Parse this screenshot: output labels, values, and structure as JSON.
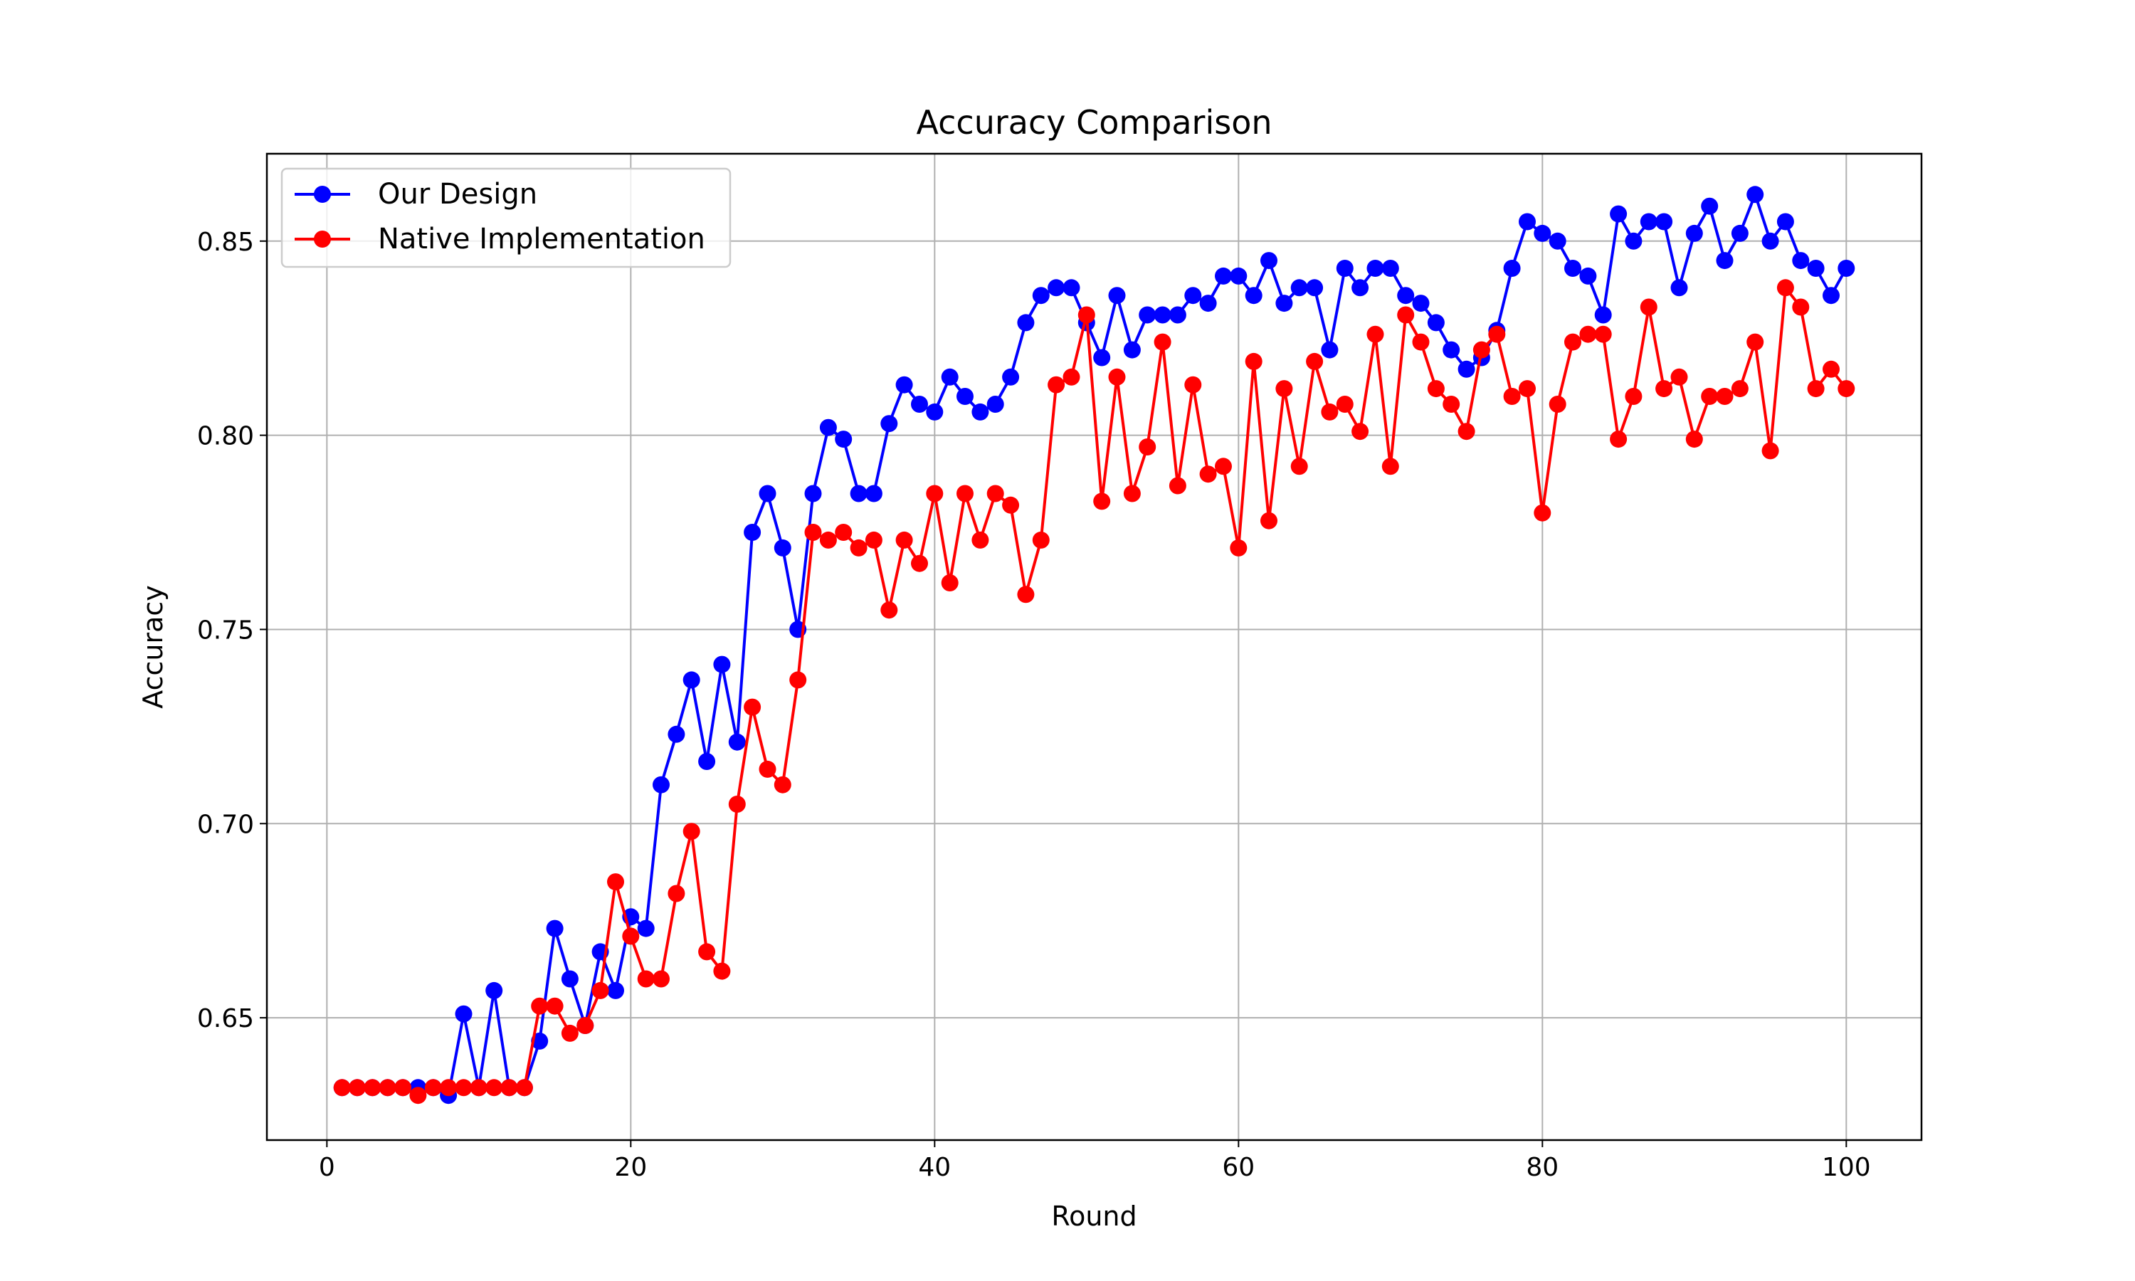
{
  "chart_data": {
    "type": "line",
    "title": "Accuracy Comparison",
    "xlabel": "Round",
    "ylabel": "Accuracy",
    "xlim": [
      -3.95,
      104.95
    ],
    "ylim": [
      0.6185,
      0.8725
    ],
    "xticks": [
      0,
      20,
      40,
      60,
      80,
      100
    ],
    "yticks": [
      0.65,
      0.7,
      0.75,
      0.8,
      0.85
    ],
    "xtick_labels": [
      "0",
      "20",
      "40",
      "60",
      "80",
      "100"
    ],
    "ytick_labels": [
      "0.65",
      "0.70",
      "0.75",
      "0.80",
      "0.85"
    ],
    "grid": true,
    "legend_position": "top-left",
    "x": [
      1,
      2,
      3,
      4,
      5,
      6,
      7,
      8,
      9,
      10,
      11,
      12,
      13,
      14,
      15,
      16,
      17,
      18,
      19,
      20,
      21,
      22,
      23,
      24,
      25,
      26,
      27,
      28,
      29,
      30,
      31,
      32,
      33,
      34,
      35,
      36,
      37,
      38,
      39,
      40,
      41,
      42,
      43,
      44,
      45,
      46,
      47,
      48,
      49,
      50,
      51,
      52,
      53,
      54,
      55,
      56,
      57,
      58,
      59,
      60,
      61,
      62,
      63,
      64,
      65,
      66,
      67,
      68,
      69,
      70,
      71,
      72,
      73,
      74,
      75,
      76,
      77,
      78,
      79,
      80,
      81,
      82,
      83,
      84,
      85,
      86,
      87,
      88,
      89,
      90,
      91,
      92,
      93,
      94,
      95,
      96,
      97,
      98,
      99,
      100
    ],
    "series": [
      {
        "name": "Our Design",
        "color": "#0000ff",
        "values": [
          0.632,
          0.632,
          0.632,
          0.632,
          0.632,
          0.632,
          0.632,
          0.63,
          0.651,
          0.632,
          0.657,
          0.632,
          0.632,
          0.644,
          0.673,
          0.66,
          0.648,
          0.667,
          0.657,
          0.676,
          0.673,
          0.71,
          0.723,
          0.737,
          0.716,
          0.741,
          0.721,
          0.775,
          0.785,
          0.771,
          0.75,
          0.785,
          0.802,
          0.799,
          0.785,
          0.785,
          0.803,
          0.813,
          0.808,
          0.806,
          0.815,
          0.81,
          0.806,
          0.808,
          0.815,
          0.829,
          0.836,
          0.838,
          0.838,
          0.829,
          0.82,
          0.836,
          0.822,
          0.831,
          0.831,
          0.831,
          0.836,
          0.834,
          0.841,
          0.841,
          0.836,
          0.845,
          0.834,
          0.838,
          0.838,
          0.822,
          0.843,
          0.838,
          0.843,
          0.843,
          0.836,
          0.834,
          0.829,
          0.822,
          0.817,
          0.82,
          0.827,
          0.843,
          0.855,
          0.852,
          0.85,
          0.843,
          0.841,
          0.831,
          0.857,
          0.85,
          0.855,
          0.855,
          0.838,
          0.852,
          0.859,
          0.845,
          0.852,
          0.862,
          0.85,
          0.855,
          0.845,
          0.843,
          0.836,
          0.843
        ]
      },
      {
        "name": "Native Implementation",
        "color": "#ff0000",
        "values": [
          0.632,
          0.632,
          0.632,
          0.632,
          0.632,
          0.63,
          0.632,
          0.632,
          0.632,
          0.632,
          0.632,
          0.632,
          0.632,
          0.653,
          0.653,
          0.646,
          0.648,
          0.657,
          0.685,
          0.671,
          0.66,
          0.66,
          0.682,
          0.698,
          0.667,
          0.662,
          0.705,
          0.73,
          0.714,
          0.71,
          0.737,
          0.775,
          0.773,
          0.775,
          0.771,
          0.773,
          0.755,
          0.773,
          0.767,
          0.785,
          0.762,
          0.785,
          0.773,
          0.785,
          0.782,
          0.759,
          0.773,
          0.813,
          0.815,
          0.831,
          0.783,
          0.815,
          0.785,
          0.797,
          0.824,
          0.787,
          0.813,
          0.79,
          0.792,
          0.771,
          0.819,
          0.778,
          0.812,
          0.792,
          0.819,
          0.806,
          0.808,
          0.801,
          0.826,
          0.792,
          0.831,
          0.824,
          0.812,
          0.808,
          0.801,
          0.822,
          0.826,
          0.81,
          0.812,
          0.78,
          0.808,
          0.824,
          0.826,
          0.826,
          0.799,
          0.81,
          0.833,
          0.812,
          0.815,
          0.799,
          0.81,
          0.81,
          0.812,
          0.824,
          0.796,
          0.838,
          0.833,
          0.812,
          0.817,
          0.812
        ]
      }
    ]
  }
}
